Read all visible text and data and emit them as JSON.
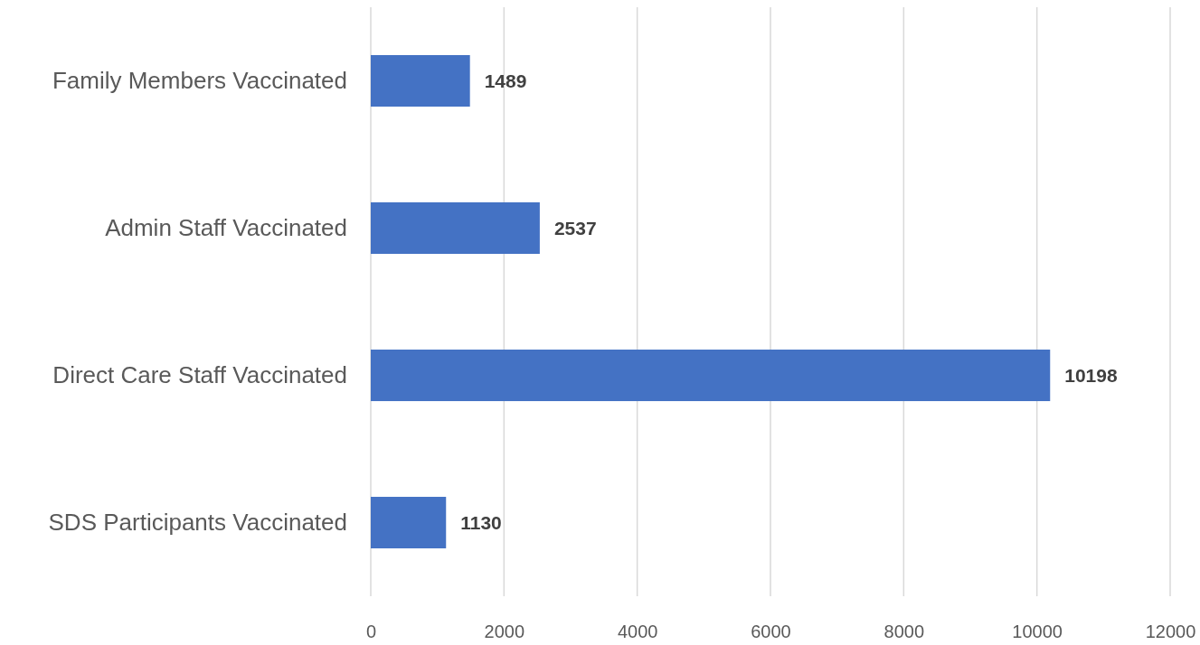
{
  "chart_data": {
    "type": "bar",
    "orientation": "horizontal",
    "categories": [
      "Family Members Vaccinated",
      "Admin Staff Vaccinated",
      "Direct Care Staff Vaccinated",
      "SDS Participants Vaccinated"
    ],
    "values": [
      1489,
      2537,
      10198,
      1130
    ],
    "color": "#4472c4",
    "xlim": [
      0,
      12000
    ],
    "xticks": [
      0,
      2000,
      4000,
      6000,
      8000,
      10000,
      12000
    ],
    "grid": "x",
    "data_labels": true
  }
}
